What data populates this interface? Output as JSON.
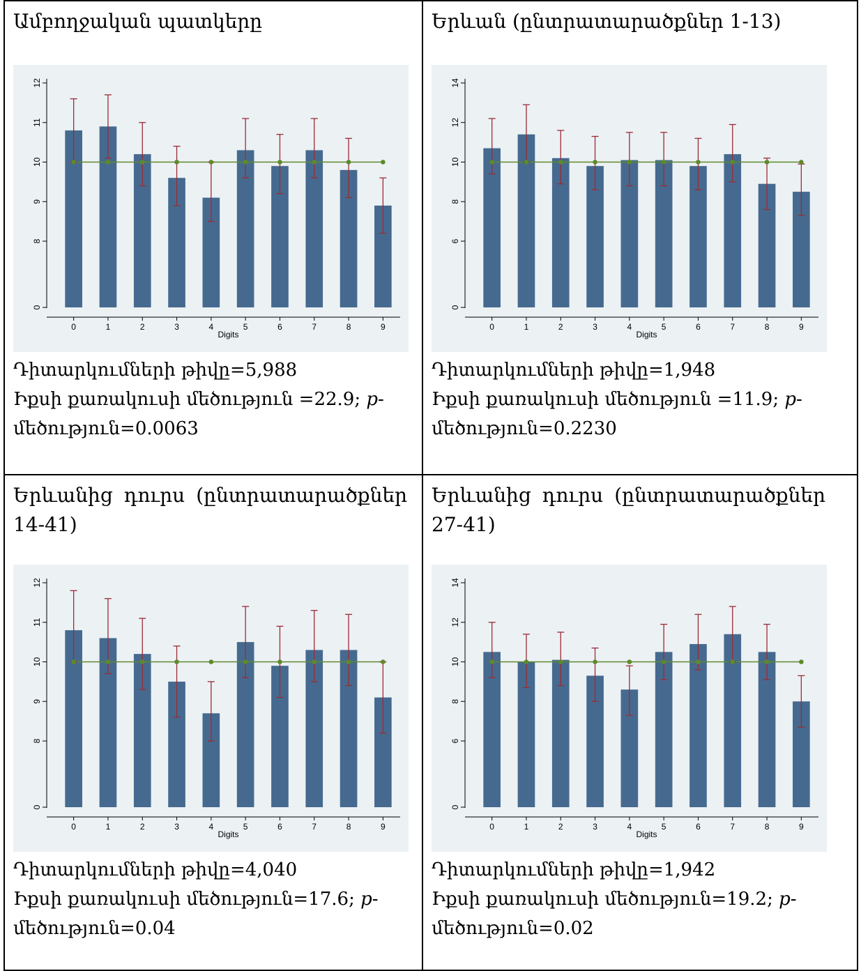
{
  "panels": [
    {
      "title": "Ամբողջական պատկերը",
      "stats": {
        "n_line": "Դիտարկումների թիվը=5,988",
        "chi_line": "Իքսի քառակուսի մեծություն =22.9;",
        "p_prefix": "p",
        "p_line": "-",
        "p_cont": "մեծություն=0.0063"
      }
    },
    {
      "title": "Երևան (ընտրատարածքներ 1-13)",
      "stats": {
        "n_line": "Դիտարկումների թիվը=1,948",
        "chi_line": "Իքսի քառակուսի մեծություն =11.9;",
        "p_prefix": "p",
        "p_line": "-",
        "p_cont": "մեծություն=0.2230"
      }
    },
    {
      "title": "Երևանից դուրս (ընտրատարածքներ 14-41)",
      "stats": {
        "n_line": "Դիտարկումների թիվը=4,040",
        "chi_line": "Իքսի քառակուսի մեծություն=17.6;",
        "p_prefix": "p",
        "p_line": "-",
        "p_cont": "մեծություն=0.04"
      }
    },
    {
      "title": "Երևանից դուրս (ընտրատարածքներ 27-41)",
      "stats": {
        "n_line": "Դիտարկումների թիվը=1,942",
        "chi_line": "Իքսի քառակուսի մեծություն=19.2;",
        "p_prefix": "p",
        "p_line": "-",
        "p_cont": "մեծություն=0.02"
      }
    }
  ],
  "chart_data": [
    {
      "type": "bar",
      "xlabel": "Digits",
      "categories": [
        "0",
        "1",
        "2",
        "3",
        "4",
        "5",
        "6",
        "7",
        "8",
        "9"
      ],
      "yticks": [
        0,
        8,
        9,
        10,
        11,
        12
      ],
      "axis_scale": "piecewise: compressed 0-8, expanded 8-12",
      "values": [
        10.8,
        10.9,
        10.2,
        9.6,
        9.1,
        10.3,
        9.9,
        10.3,
        9.8,
        8.9
      ],
      "ci_low": [
        10.0,
        10.1,
        9.4,
        8.9,
        8.5,
        9.6,
        9.2,
        9.6,
        9.1,
        8.2
      ],
      "ci_high": [
        11.6,
        11.7,
        11.0,
        10.4,
        10.0,
        11.1,
        10.7,
        11.1,
        10.6,
        9.6
      ],
      "expected": 10,
      "colors": {
        "bar": "#466a8f",
        "error": "#9b2b35",
        "expected": "#5e8a2a"
      }
    },
    {
      "type": "bar",
      "xlabel": "Digits",
      "categories": [
        "0",
        "1",
        "2",
        "3",
        "4",
        "5",
        "6",
        "7",
        "8",
        "9"
      ],
      "yticks": [
        0,
        6,
        8,
        10,
        12,
        14
      ],
      "axis_scale": "piecewise: compressed 0-6, expanded 6-14",
      "values": [
        10.7,
        11.4,
        10.2,
        9.8,
        10.1,
        10.1,
        9.8,
        10.4,
        8.9,
        8.5
      ],
      "ci_low": [
        9.4,
        10.0,
        8.9,
        8.6,
        8.8,
        8.8,
        8.6,
        9.0,
        7.6,
        7.3
      ],
      "ci_high": [
        12.2,
        12.9,
        11.6,
        11.3,
        11.5,
        11.5,
        11.2,
        11.9,
        10.2,
        9.9
      ],
      "expected": 10,
      "colors": {
        "bar": "#466a8f",
        "error": "#9b2b35",
        "expected": "#5e8a2a"
      }
    },
    {
      "type": "bar",
      "xlabel": "Digits",
      "categories": [
        "0",
        "1",
        "2",
        "3",
        "4",
        "5",
        "6",
        "7",
        "8",
        "9"
      ],
      "yticks": [
        0,
        8,
        9,
        10,
        11,
        12
      ],
      "axis_scale": "piecewise: compressed 0-8, expanded 8-12",
      "values": [
        10.8,
        10.6,
        10.2,
        9.5,
        8.7,
        10.5,
        9.9,
        10.3,
        10.3,
        9.1
      ],
      "ci_low": [
        10.0,
        9.7,
        9.3,
        8.6,
        8.0,
        9.6,
        9.1,
        9.5,
        9.4,
        8.2
      ],
      "ci_high": [
        11.8,
        11.6,
        11.1,
        10.4,
        9.5,
        11.4,
        10.9,
        11.3,
        11.2,
        10.0
      ],
      "expected": 10,
      "colors": {
        "bar": "#466a8f",
        "error": "#9b2b35",
        "expected": "#5e8a2a"
      }
    },
    {
      "type": "bar",
      "xlabel": "Digits",
      "categories": [
        "0",
        "1",
        "2",
        "3",
        "4",
        "5",
        "6",
        "7",
        "8",
        "9"
      ],
      "yticks": [
        0,
        6,
        8,
        10,
        12,
        14
      ],
      "axis_scale": "piecewise: compressed 0-6, expanded 6-14",
      "values": [
        10.5,
        10.0,
        10.1,
        9.3,
        8.6,
        10.5,
        10.9,
        11.4,
        10.5,
        8.0
      ],
      "ci_low": [
        9.2,
        8.7,
        8.8,
        8.0,
        7.3,
        9.1,
        9.6,
        10.0,
        9.1,
        6.7
      ],
      "ci_high": [
        12.0,
        11.4,
        11.5,
        10.7,
        9.8,
        11.9,
        12.4,
        12.8,
        11.9,
        9.3
      ],
      "expected": 10,
      "colors": {
        "bar": "#466a8f",
        "error": "#9b2b35",
        "expected": "#5e8a2a"
      }
    }
  ]
}
